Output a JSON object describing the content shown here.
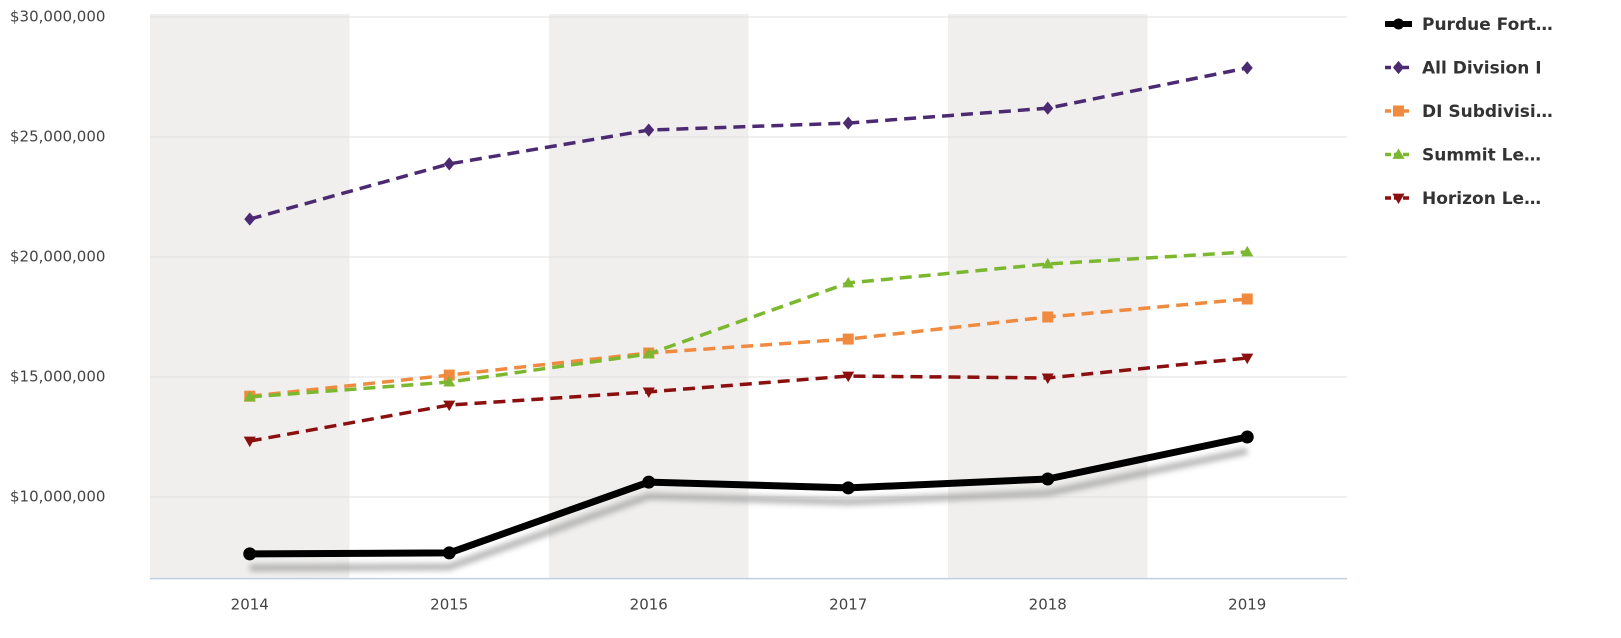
{
  "chart_data": {
    "type": "line",
    "categories": [
      "2014",
      "2015",
      "2016",
      "2017",
      "2018",
      "2019"
    ],
    "series": [
      {
        "name": "Purdue Fort…",
        "color": "#000000",
        "marker": "circle",
        "dashed": false,
        "values": [
          7630000,
          7670000,
          10620000,
          10380000,
          10750000,
          12500000
        ]
      },
      {
        "name": "All Division I",
        "color": "#4b2a72",
        "marker": "diamond",
        "dashed": true,
        "values": [
          21580000,
          23880000,
          25290000,
          25580000,
          26200000,
          27880000
        ]
      },
      {
        "name": "DI Subdivisi…",
        "color": "#f08a3e",
        "marker": "square",
        "dashed": true,
        "values": [
          14200000,
          15080000,
          16000000,
          16580000,
          17500000,
          18250000
        ]
      },
      {
        "name": "Summit Le…",
        "color": "#7cb82f",
        "marker": "triangle-up",
        "dashed": true,
        "values": [
          14170000,
          14790000,
          15960000,
          18920000,
          19710000,
          20210000
        ]
      },
      {
        "name": "Horizon Le…",
        "color": "#8b0f0f",
        "marker": "triangle-down",
        "dashed": true,
        "values": [
          12330000,
          13830000,
          14380000,
          15040000,
          14960000,
          15790000
        ]
      }
    ],
    "ylim": [
      6600000,
      30000000
    ],
    "yticks": [
      {
        "value": 10000000,
        "label": "$10,000,000"
      },
      {
        "value": 15000000,
        "label": "$15,000,000"
      },
      {
        "value": 20000000,
        "label": "$20,000,000"
      },
      {
        "value": 25000000,
        "label": "$25,000,000"
      },
      {
        "value": 30000000,
        "label": "$30,000,000"
      }
    ],
    "grid": true,
    "alternate_bands": true,
    "legend": "right"
  }
}
